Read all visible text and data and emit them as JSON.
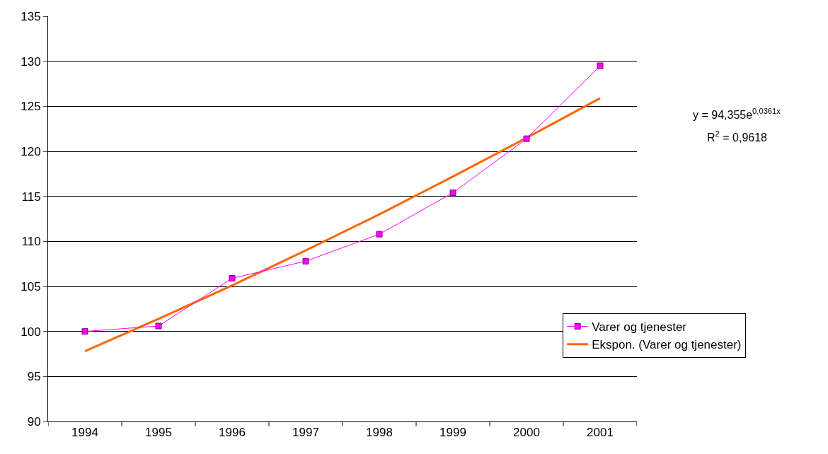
{
  "chart_data": {
    "type": "line",
    "categories": [
      "1994",
      "1995",
      "1996",
      "1997",
      "1998",
      "1999",
      "2000",
      "2001"
    ],
    "series": [
      {
        "name": "Varer og tjenester",
        "color": "#ff00ff",
        "values": [
          100,
          100.6,
          105.9,
          107.8,
          110.8,
          115.4,
          121.4,
          129.5
        ]
      },
      {
        "name": "Ekspon. (Varer og tjenester)",
        "color": "#ff6600",
        "type": "line",
        "marker": "none",
        "values": [
          97.8,
          101.4,
          105.1,
          109.0,
          113.0,
          117.2,
          121.5,
          125.9
        ]
      }
    ],
    "ylim": [
      90,
      135
    ],
    "yticks": [
      90,
      95,
      100,
      105,
      110,
      115,
      120,
      125,
      130,
      135
    ],
    "grid": "y",
    "legend": "right",
    "marker": "square",
    "line_style": "solid",
    "annotations": [
      "y = 94,355e$^{0,0361x}$",
      "R$^{2}$ = 0,9618"
    ]
  }
}
